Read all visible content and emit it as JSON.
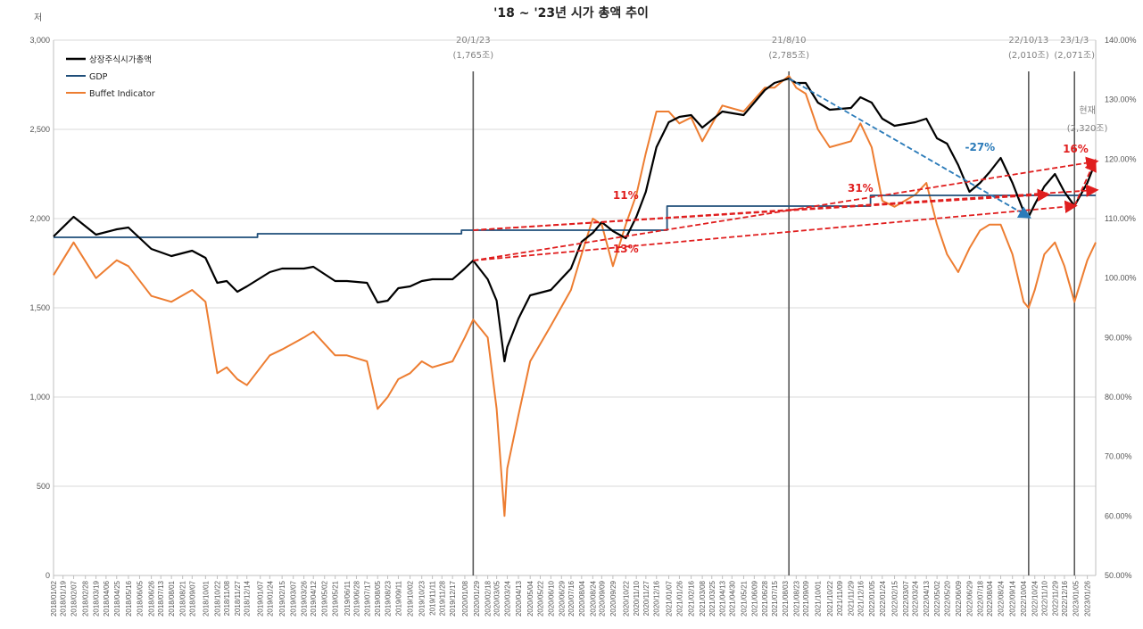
{
  "chart_data": {
    "type": "line",
    "title": "'18 ~ '23년 시가 총액 추이",
    "y_unit": "저",
    "ylim": [
      0,
      3000
    ],
    "y2lim": [
      50,
      140
    ],
    "y_ticks": [
      "0",
      "500",
      "1,000",
      "1,500",
      "2,000",
      "2,500",
      "3,000"
    ],
    "y2_ticks": [
      "50.00%",
      "60.00%",
      "70.00%",
      "80.00%",
      "90.00%",
      "100.00%",
      "110.00%",
      "120.00%",
      "130.00%",
      "140.00%"
    ],
    "grid": true,
    "legend_position": "top-left",
    "x_tick_labels": [
      "2018/01/02",
      "2018/01/19",
      "2018/02/07",
      "2018/02/28",
      "2018/03/19",
      "2018/04/06",
      "2018/04/25",
      "2018/05/16",
      "2018/06/05",
      "2018/06/26",
      "2018/07/13",
      "2018/08/01",
      "2018/08/21",
      "2018/09/07",
      "2018/10/01",
      "2018/10/22",
      "2018/11/08",
      "2018/11/27",
      "2018/12/14",
      "2019/01/07",
      "2019/01/24",
      "2019/02/15",
      "2019/03/07",
      "2019/03/26",
      "2019/04/12",
      "2019/05/02",
      "2019/05/21",
      "2019/06/11",
      "2019/06/28",
      "2019/07/17",
      "2019/08/05",
      "2019/08/23",
      "2019/09/11",
      "2019/10/02",
      "2019/10/23",
      "2019/11/11",
      "2019/11/28",
      "2019/12/17",
      "2020/01/08",
      "2020/01/29",
      "2020/02/18",
      "2020/03/05",
      "2020/03/24",
      "2020/04/13",
      "2020/05/04",
      "2020/05/22",
      "2020/06/10",
      "2020/06/29",
      "2020/07/16",
      "2020/08/04",
      "2020/08/24",
      "2020/09/09",
      "2020/09/29",
      "2020/10/22",
      "2020/11/10",
      "2020/11/27",
      "2020/12/16",
      "2021/01/07",
      "2021/01/26",
      "2021/02/16",
      "2021/03/08",
      "2021/03/25",
      "2021/04/13",
      "2021/04/30",
      "2021/05/21",
      "2021/06/09",
      "2021/06/28",
      "2021/07/15",
      "2021/08/03",
      "2021/08/23",
      "2021/09/09",
      "2021/10/01",
      "2021/10/22",
      "2021/11/09",
      "2021/11/29",
      "2021/12/16",
      "2022/01/05",
      "2022/01/24",
      "2022/02/15",
      "2022/03/07",
      "2022/03/24",
      "2022/04/13",
      "2022/05/02",
      "2022/05/20",
      "2022/06/09",
      "2022/06/29",
      "2022/07/18",
      "2022/08/04",
      "2022/08/24",
      "2022/09/14",
      "2022/10/04",
      "2022/10/24",
      "2022/11/10",
      "2022/11/29",
      "2022/12/16",
      "2023/01/05",
      "2023/01/26"
    ],
    "series": [
      {
        "name": "상장주식시가총액",
        "color": "#000000",
        "axis": "left",
        "x": [
          "2018/01/02",
          "2018/02/07",
          "2018/03/19",
          "2018/04/25",
          "2018/05/16",
          "2018/06/26",
          "2018/08/01",
          "2018/09/07",
          "2018/10/01",
          "2018/10/22",
          "2018/11/08",
          "2018/11/27",
          "2018/12/14",
          "2019/01/24",
          "2019/02/15",
          "2019/03/26",
          "2019/04/12",
          "2019/05/21",
          "2019/06/11",
          "2019/07/17",
          "2019/08/05",
          "2019/08/23",
          "2019/09/11",
          "2019/10/02",
          "2019/10/23",
          "2019/11/11",
          "2019/12/17",
          "2020/01/08",
          "2020/01/23",
          "2020/02/18",
          "2020/03/05",
          "2020/03/19",
          "2020/03/24",
          "2020/04/13",
          "2020/05/04",
          "2020/06/10",
          "2020/07/16",
          "2020/08/04",
          "2020/08/24",
          "2020/09/09",
          "2020/09/29",
          "2020/10/22",
          "2020/11/10",
          "2020/11/27",
          "2020/12/16",
          "2021/01/07",
          "2021/01/26",
          "2021/02/16",
          "2021/03/08",
          "2021/04/13",
          "2021/05/21",
          "2021/06/28",
          "2021/07/15",
          "2021/08/10",
          "2021/08/23",
          "2021/09/09",
          "2021/10/01",
          "2021/10/22",
          "2021/11/29",
          "2021/12/16",
          "2022/01/05",
          "2022/01/24",
          "2022/02/15",
          "2022/03/24",
          "2022/04/13",
          "2022/05/02",
          "2022/05/20",
          "2022/06/09",
          "2022/06/29",
          "2022/07/18",
          "2022/08/04",
          "2022/08/24",
          "2022/09/14",
          "2022/10/04",
          "2022/10/13",
          "2022/10/24",
          "2022/11/10",
          "2022/11/29",
          "2022/12/16",
          "2023/01/03",
          "2023/01/26",
          "2023/02/10"
        ],
        "values": [
          1900,
          2010,
          1910,
          1940,
          1950,
          1830,
          1790,
          1820,
          1780,
          1640,
          1650,
          1590,
          1620,
          1700,
          1720,
          1720,
          1730,
          1650,
          1650,
          1640,
          1530,
          1540,
          1610,
          1620,
          1650,
          1660,
          1660,
          1720,
          1765,
          1660,
          1540,
          1200,
          1280,
          1440,
          1570,
          1600,
          1720,
          1870,
          1920,
          1980,
          1930,
          1890,
          2010,
          2150,
          2400,
          2540,
          2570,
          2580,
          2510,
          2600,
          2580,
          2720,
          2760,
          2785,
          2760,
          2760,
          2650,
          2610,
          2620,
          2680,
          2650,
          2560,
          2520,
          2540,
          2560,
          2450,
          2420,
          2300,
          2150,
          2200,
          2260,
          2340,
          2200,
          2040,
          2010,
          2080,
          2180,
          2250,
          2150,
          2071,
          2200,
          2320
        ]
      },
      {
        "name": "GDP",
        "color": "#1f4e79",
        "axis": "left",
        "x": [
          "2018/01/02",
          "2018/12/14",
          "2019/01/02",
          "2019/12/31",
          "2020/01/02",
          "2020/12/31",
          "2021/01/04",
          "2021/12/30",
          "2022/01/03",
          "2023/02/10"
        ],
        "values": [
          1895,
          1895,
          1915,
          1915,
          1935,
          1935,
          2070,
          2070,
          2130,
          2130
        ]
      },
      {
        "name": "Buffet Indicator",
        "color": "#ed7d31",
        "axis": "right",
        "x": [
          "2018/01/02",
          "2018/02/07",
          "2018/03/19",
          "2018/04/25",
          "2018/05/16",
          "2018/06/26",
          "2018/08/01",
          "2018/09/07",
          "2018/10/01",
          "2018/10/22",
          "2018/11/08",
          "2018/11/27",
          "2018/12/14",
          "2019/01/24",
          "2019/02/15",
          "2019/03/26",
          "2019/04/12",
          "2019/05/21",
          "2019/06/11",
          "2019/07/17",
          "2019/08/05",
          "2019/08/23",
          "2019/09/11",
          "2019/10/02",
          "2019/10/23",
          "2019/11/11",
          "2019/12/17",
          "2020/01/08",
          "2020/01/23",
          "2020/02/18",
          "2020/03/05",
          "2020/03/19",
          "2020/03/24",
          "2020/04/13",
          "2020/05/04",
          "2020/06/10",
          "2020/07/16",
          "2020/08/04",
          "2020/08/24",
          "2020/09/09",
          "2020/09/29",
          "2020/10/22",
          "2020/11/10",
          "2020/11/27",
          "2020/12/16",
          "2021/01/07",
          "2021/01/26",
          "2021/02/16",
          "2021/03/08",
          "2021/04/13",
          "2021/05/21",
          "2021/06/28",
          "2021/07/15",
          "2021/08/10",
          "2021/08/23",
          "2021/09/09",
          "2021/10/01",
          "2021/10/22",
          "2021/11/29",
          "2021/12/16",
          "2022/01/05",
          "2022/01/24",
          "2022/02/15",
          "2022/03/24",
          "2022/04/13",
          "2022/05/02",
          "2022/05/20",
          "2022/06/09",
          "2022/06/29",
          "2022/07/18",
          "2022/08/04",
          "2022/08/24",
          "2022/09/14",
          "2022/10/04",
          "2022/10/13",
          "2022/10/24",
          "2022/11/10",
          "2022/11/29",
          "2022/12/16",
          "2023/01/03",
          "2023/01/26",
          "2023/02/10"
        ],
        "values": [
          100.5,
          106,
          100,
          103,
          102,
          97,
          96,
          98,
          96,
          84,
          85,
          83,
          82,
          87,
          88,
          90,
          91,
          87,
          87,
          86,
          78,
          80,
          83,
          84,
          86,
          85,
          86,
          90,
          93,
          90,
          78,
          60,
          68,
          77,
          86,
          92,
          98,
          104,
          110,
          109,
          102,
          109,
          114,
          121,
          128,
          128,
          126,
          127,
          123,
          129,
          128,
          132,
          132,
          134,
          132,
          131,
          125,
          122,
          123,
          126,
          122,
          113,
          112,
          114,
          116,
          109,
          104,
          101,
          105,
          108,
          109,
          109,
          104,
          96,
          95,
          98,
          104,
          106,
          102,
          96,
          103,
          106
        ]
      }
    ],
    "events": [
      {
        "date": "2020/01/23",
        "label": "20/1/23",
        "sub": "(1,765조)"
      },
      {
        "date": "2021/08/10",
        "label": "21/8/10",
        "sub": "(2,785조)"
      },
      {
        "date": "2022/10/13",
        "label": "22/10/13",
        "sub": "(2,010조)"
      },
      {
        "date": "2023/01/03",
        "label": "23/1/3",
        "sub": "(2,071조)"
      }
    ],
    "current": {
      "label": "현재",
      "sub": "(2,320조)"
    },
    "annotations": [
      {
        "text": "11%",
        "color": "#e01e1e"
      },
      {
        "text": "31%",
        "color": "#e01e1e"
      },
      {
        "text": "13%",
        "color": "#e01e1e"
      },
      {
        "text": "-27%",
        "color": "#2b7bb9"
      },
      {
        "text": "16%",
        "color": "#e01e1e"
      }
    ]
  }
}
